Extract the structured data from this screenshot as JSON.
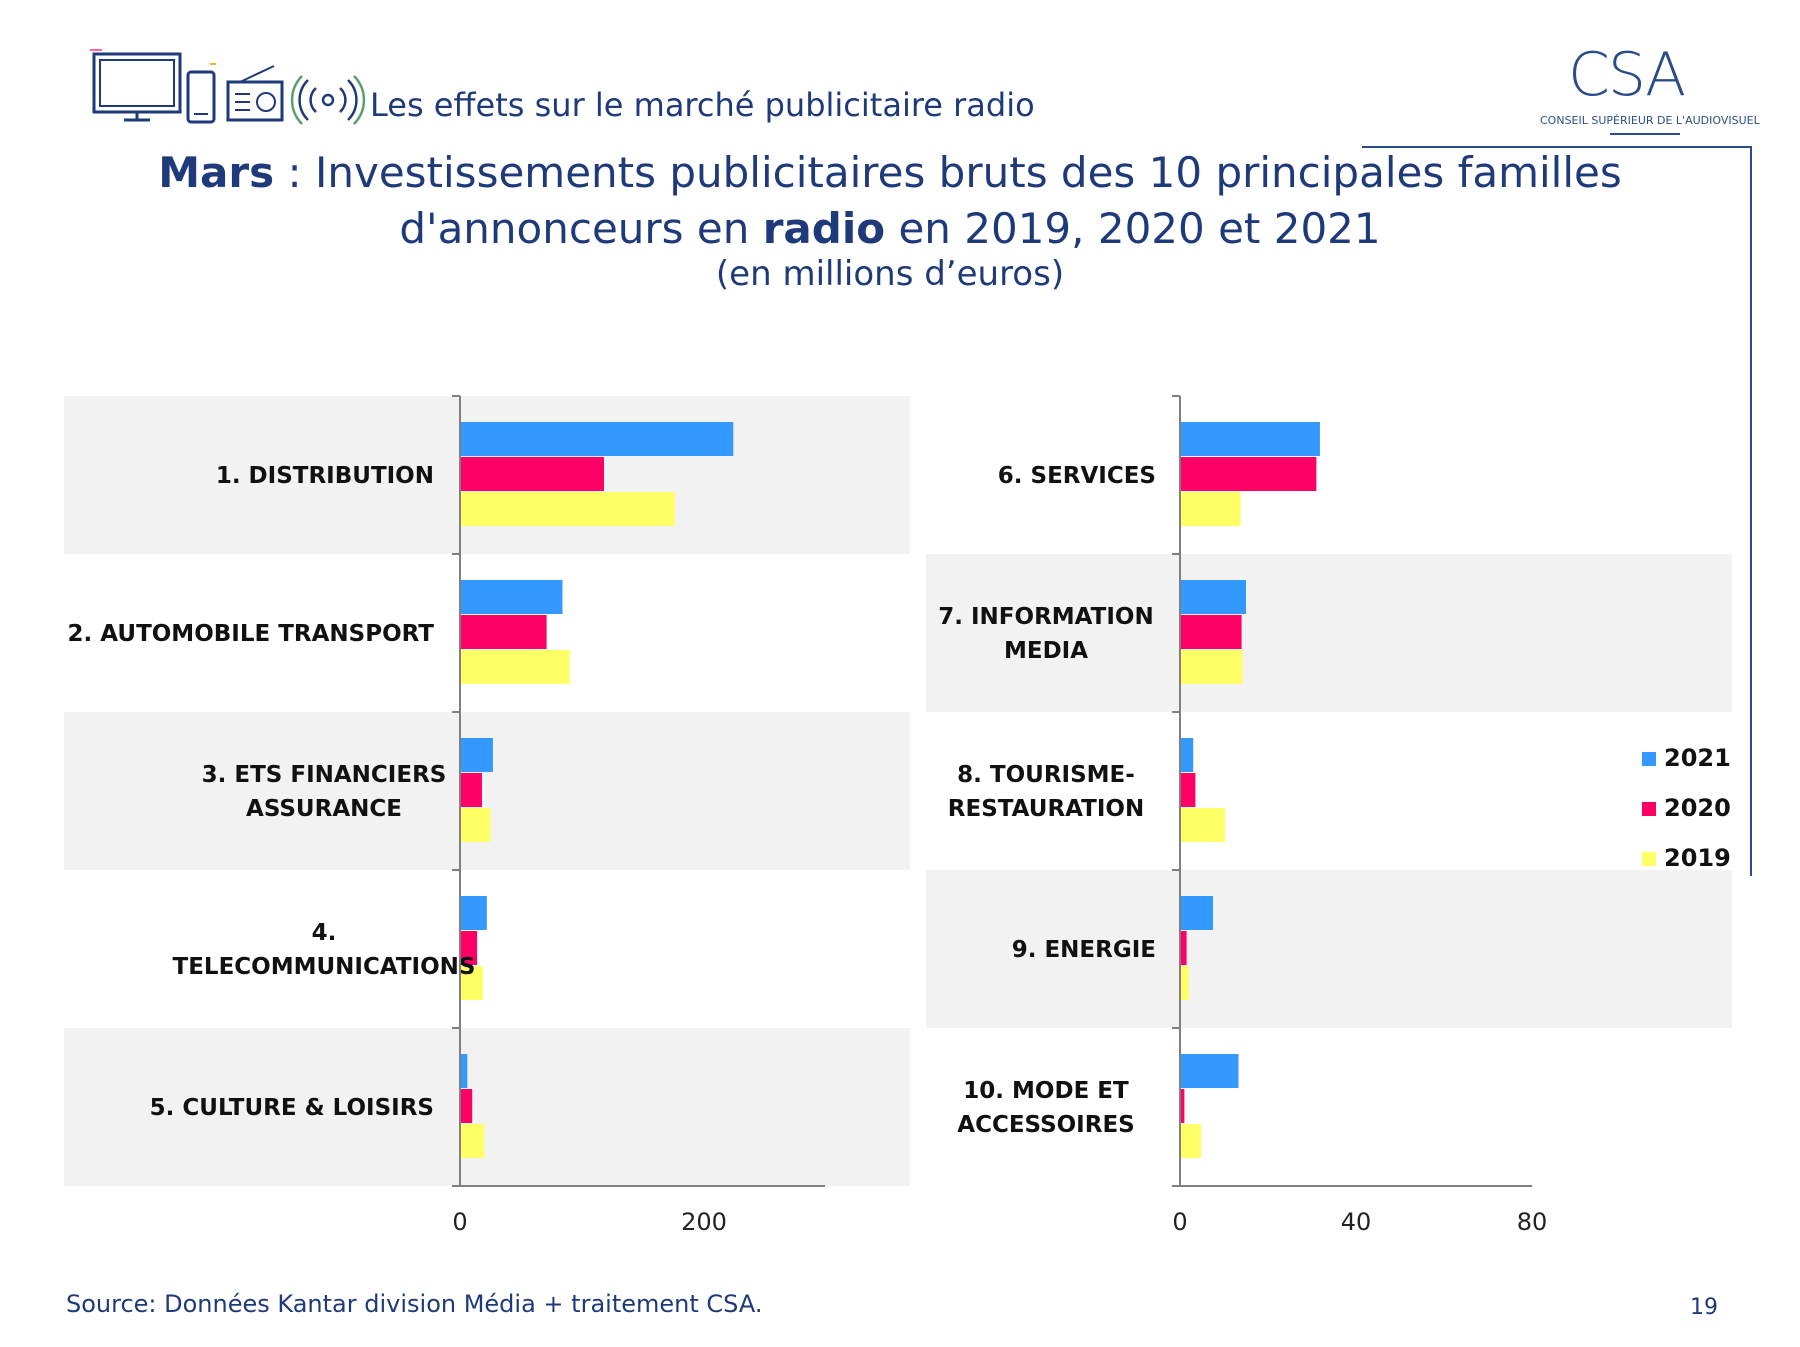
{
  "header": {
    "section_title": "Les effets sur le marché publicitaire radio",
    "icons": [
      "tv-icon",
      "phone-icon",
      "radio-icon",
      "broadcast-icon"
    ]
  },
  "logo": {
    "letters": "CSA",
    "subtitle": "CONSEIL SUPÉRIEUR DE L'AUDIOVISUEL"
  },
  "title": {
    "part1_bold": "Mars",
    "part2": " : Investissements publicitaires bruts des 10 principales familles d'annonceurs en ",
    "part3_bold": "radio",
    "part4": " en 2019, 2020 et 2021",
    "subtitle": "(en millions d’euros)"
  },
  "chart_data": [
    {
      "type": "bar",
      "orientation": "horizontal",
      "categories": [
        "1. DISTRIBUTION",
        "2. AUTOMOBILE TRANSPORT",
        "3. ETS FINANCIERS ASSURANCE",
        "4. TELECOMMUNICATIONS",
        "5. CULTURE & LOISIRS"
      ],
      "series": [
        {
          "name": "2021",
          "color": "#3399ff",
          "values": [
            224,
            84,
            27,
            22,
            6
          ]
        },
        {
          "name": "2020",
          "color": "#ff0066",
          "values": [
            118,
            71,
            18,
            14,
            10
          ]
        },
        {
          "name": "2019",
          "color": "#ffff66",
          "values": [
            176,
            90,
            25,
            19,
            20
          ]
        }
      ],
      "xlim": [
        0,
        300
      ],
      "xticks": [
        "0",
        "200"
      ],
      "xtick_values": [
        0,
        200
      ]
    },
    {
      "type": "bar",
      "orientation": "horizontal",
      "categories": [
        "6. SERVICES",
        "7. INFORMATION MEDIA",
        "8. TOURISME-RESTAURATION",
        "9. ENERGIE",
        "10. MODE ET ACCESSOIRES"
      ],
      "series": [
        {
          "name": "2021",
          "color": "#3399ff",
          "values": [
            31.8,
            15.0,
            3.0,
            7.5,
            13.3
          ]
        },
        {
          "name": "2020",
          "color": "#ff0066",
          "values": [
            31.0,
            14.0,
            3.5,
            1.5,
            1.0
          ]
        },
        {
          "name": "2019",
          "color": "#ffff66",
          "values": [
            13.8,
            14.2,
            10.2,
            2.0,
            4.8
          ]
        }
      ],
      "xlim": [
        0,
        80
      ],
      "xticks": [
        "0",
        "40",
        "80"
      ],
      "xtick_values": [
        0,
        40,
        80
      ]
    }
  ],
  "legend": [
    {
      "name": "2021",
      "color": "#3399ff"
    },
    {
      "name": "2020",
      "color": "#ff0066"
    },
    {
      "name": "2019",
      "color": "#ffff66"
    }
  ],
  "footer": {
    "source": "Source: Données Kantar division Média + traitement CSA.",
    "page_number": "19"
  }
}
